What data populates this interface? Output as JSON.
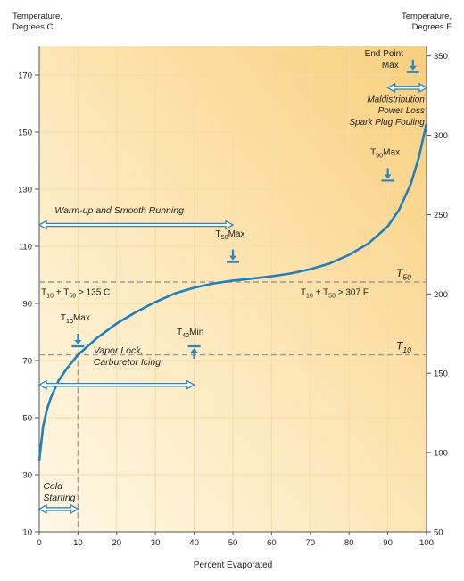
{
  "chart_data": {
    "type": "line",
    "xlabel": "Percent Evaporated",
    "ylabel_left": "Temperature,\nDegrees C",
    "ylabel_right": "Temperature,\nDegrees F",
    "xlim": [
      0,
      100
    ],
    "ylim_c": [
      10,
      180
    ],
    "ylim_f": [
      50,
      350
    ],
    "x_ticks": [
      0,
      10,
      20,
      30,
      40,
      50,
      60,
      70,
      80,
      90,
      100
    ],
    "y_ticks_c": [
      10,
      30,
      50,
      70,
      90,
      110,
      130,
      150,
      170
    ],
    "y_ticks_f": [
      50,
      100,
      150,
      200,
      250,
      300,
      350
    ],
    "grid": true,
    "series": [
      {
        "x": [
          0,
          1,
          2,
          3,
          5,
          7,
          10,
          15,
          20,
          25,
          30,
          35,
          40,
          45,
          50,
          55,
          60,
          65,
          70,
          75,
          80,
          85,
          90,
          93,
          96,
          98,
          100
        ],
        "y": [
          35,
          47,
          53,
          57,
          63,
          67,
          72,
          78,
          83,
          87,
          90.5,
          93.5,
          95.5,
          97,
          98,
          98.7,
          99.5,
          100.5,
          102,
          104,
          107,
          111,
          117,
          123,
          132,
          141,
          153
        ]
      }
    ],
    "reference_lines": [
      {
        "label": "T",
        "sub": "50",
        "y_c": 97.5
      },
      {
        "label": "T",
        "sub": "10",
        "y_c": 72
      }
    ],
    "vertical_guides": [
      {
        "x": 10,
        "y_from_c": 10,
        "y_to_c": 73
      }
    ],
    "annotations": {
      "warmup": "Warm-up and Smooth Running",
      "vapor_lock_1": "Vapor Lock,",
      "vapor_lock_2": "Carburetor Icing",
      "cold_1": "Cold",
      "cold_2": "Starting",
      "maldist_1": "Maldistribution",
      "maldist_2": "Power Loss",
      "maldist_3": "Spark Plug Fouling",
      "endpoint_1": "End Point",
      "endpoint_2": "Max",
      "t10max_main": "T",
      "t10max_sub": "10",
      "t10max_suffix": "Max",
      "t50max_main": "T",
      "t50max_sub": "50",
      "t50max_suffix": "Max",
      "t40min_main": "T",
      "t40min_sub": "40",
      "t40min_suffix": "Min",
      "t90max_main": "T",
      "t90max_sub": "90",
      "t90max_suffix": "Max",
      "c_rule_t": "T",
      "c_rule_sub1": "10",
      "c_rule_mid": " + T",
      "c_rule_sub2": "50",
      "c_rule_tail": " > 135 C",
      "f_rule_t": "T",
      "f_rule_sub1": "10",
      "f_rule_mid": " + T",
      "f_rule_sub2": "50",
      "f_rule_tail": " > 307 F"
    },
    "colors": {
      "curve": "#1f7fbf",
      "arrows": "#2a86c4",
      "grid": "#f5dca6",
      "dashed": "#9a9a9a",
      "bg_top": "#f9cf7d",
      "bg_bottom": "#fff8e6"
    }
  }
}
